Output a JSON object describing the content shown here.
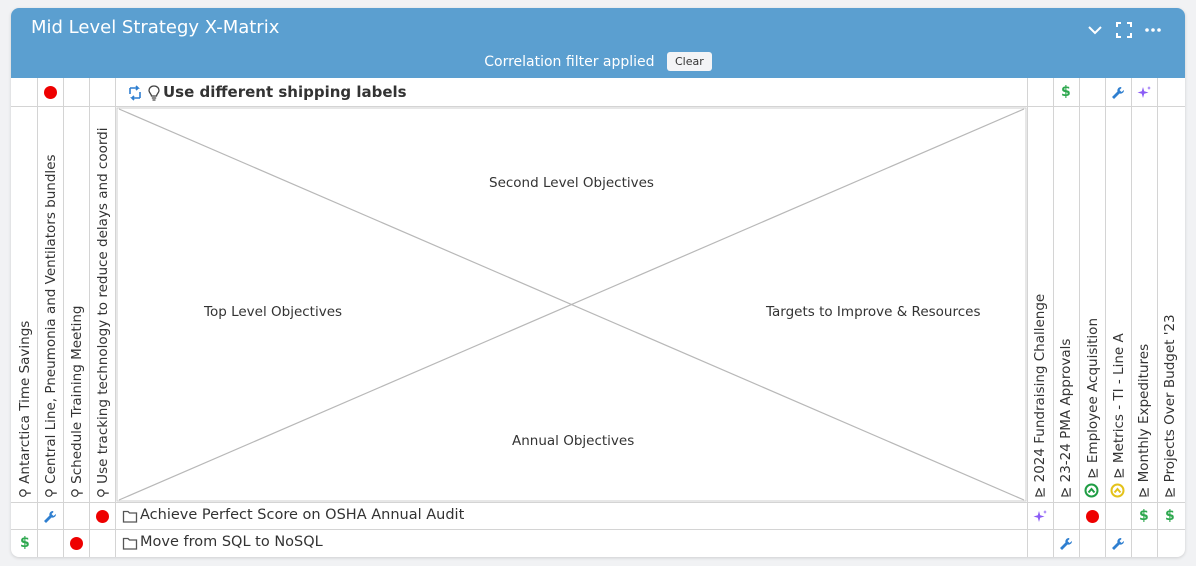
{
  "header": {
    "title": "Mid Level Strategy X-Matrix",
    "filter_text": "Correlation filter applied",
    "clear_label": "Clear"
  },
  "top_row": {
    "label": "Use different shipping labels"
  },
  "quadrants": {
    "top": "Second Level Objectives",
    "left": "Top Level Objectives",
    "right": "Targets to Improve & Resources",
    "bottom": "Annual Objectives"
  },
  "left_columns": [
    "Antarctica Time Savings",
    "Central Line, Pneumonia and Ventilators bundles",
    "Schedule Training Meeting",
    "Use tracking technology to reduce delays and coordi"
  ],
  "right_columns": [
    "2024 Fundraising Challenge",
    "23-24 PMA Approvals",
    "Employee Acquisition",
    "Metrics - TI - Line A",
    "Monthly Expeditures",
    "Projects Over Budget '23"
  ],
  "bottom_rows": [
    "Achieve Perfect Score on OSHA Annual Audit",
    "Move from SQL to NoSQL"
  ],
  "colors": {
    "header": "#5b9fd0",
    "red_dot": "#ee0000",
    "dollar": "#2ea84f",
    "wrench": "#2f7fd0",
    "sparkle": "#8b5cf6",
    "status_green": "#1f9d44",
    "status_yellow": "#e4c21a"
  }
}
